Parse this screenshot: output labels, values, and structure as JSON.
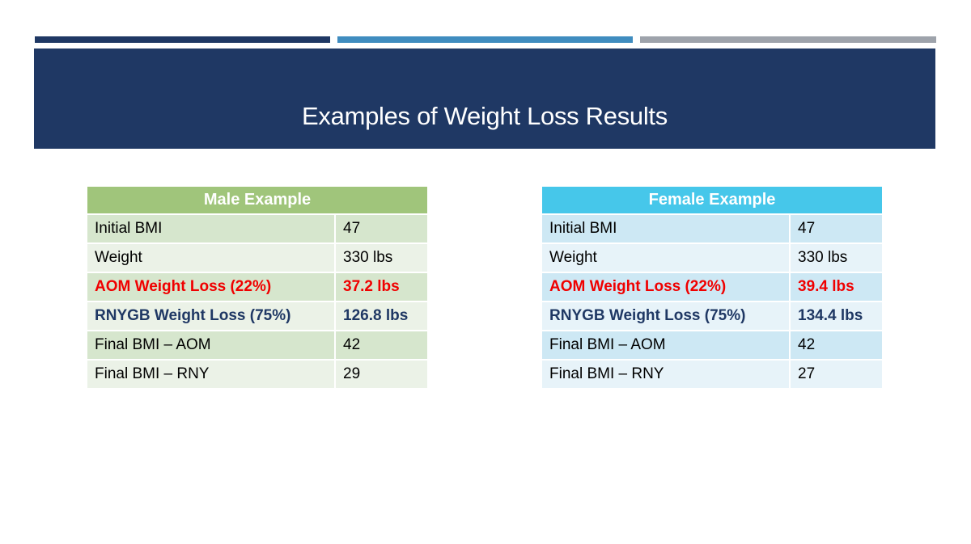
{
  "colors": {
    "bar_dark": "#1f3864",
    "bar_blue": "#3f8cbf",
    "bar_gray": "#9ea3ab",
    "title_band": "#1f3864",
    "male_header": "#a0c57b",
    "male_row_dark": "#d6e6cd",
    "male_row_light": "#ebf2e7",
    "female_header": "#46c7ea",
    "female_row_dark": "#cde8f4",
    "female_row_light": "#e7f3f9",
    "aom_text": "#f00000",
    "rnygb_text": "#1f3864"
  },
  "slide": {
    "title": "Examples of Weight Loss Results"
  },
  "male": {
    "header": "Male Example",
    "rows": [
      {
        "label": "Initial BMI",
        "value": "47"
      },
      {
        "label": "Weight",
        "value": "330 lbs"
      },
      {
        "label": "AOM Weight Loss (22%)",
        "value": "37.2 lbs"
      },
      {
        "label": "RNYGB Weight Loss (75%)",
        "value": "126.8 lbs"
      },
      {
        "label": "Final BMI – AOM",
        "value": "42"
      },
      {
        "label": "Final BMI – RNY",
        "value": "29"
      }
    ]
  },
  "female": {
    "header": "Female Example",
    "rows": [
      {
        "label": "Initial BMI",
        "value": "47"
      },
      {
        "label": "Weight",
        "value": "330 lbs"
      },
      {
        "label": "AOM Weight Loss (22%)",
        "value": "39.4 lbs"
      },
      {
        "label": "RNYGB Weight Loss (75%)",
        "value": "134.4 lbs"
      },
      {
        "label": "Final BMI – AOM",
        "value": "42"
      },
      {
        "label": "Final BMI – RNY",
        "value": "27"
      }
    ]
  }
}
